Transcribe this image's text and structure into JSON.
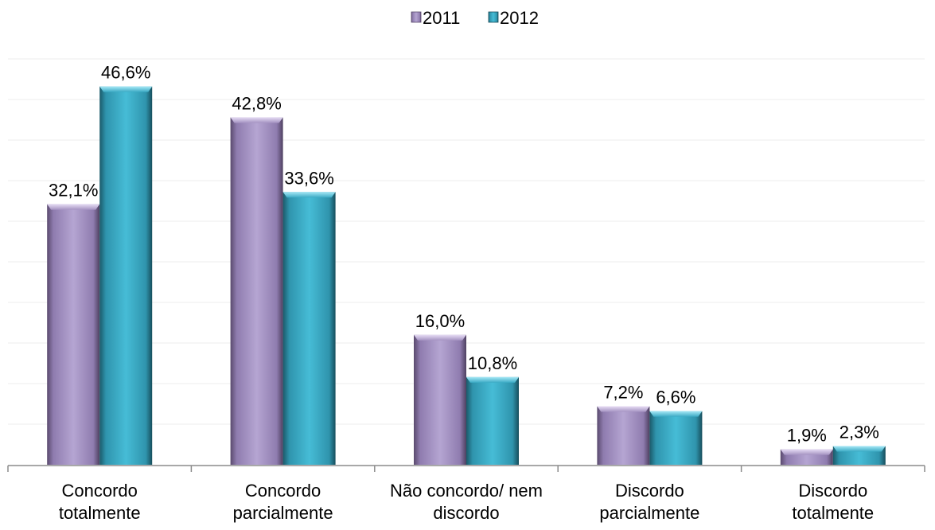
{
  "chart_data": {
    "type": "bar",
    "categories": [
      [
        "Concordo",
        "totalmente"
      ],
      [
        "Concordo",
        "parcialmente"
      ],
      [
        "Não concordo/ nem",
        "discordo"
      ],
      [
        "Discordo",
        "parcialmente"
      ],
      [
        "Discordo",
        "totalmente"
      ]
    ],
    "series": [
      {
        "name": "2011",
        "values": [
          32.1,
          42.8,
          16.0,
          7.2,
          1.9
        ],
        "labels": [
          "32,1%",
          "42,8%",
          "16,0%",
          "7,2%",
          "1,9%"
        ],
        "color": "#a593c2"
      },
      {
        "name": "2012",
        "values": [
          46.6,
          33.6,
          10.8,
          6.6,
          2.3
        ],
        "labels": [
          "46,6%",
          "33,6%",
          "10,8%",
          "6,6%",
          "2,3%"
        ],
        "color": "#3aaac4"
      }
    ],
    "ylim": [
      0,
      50
    ],
    "grid": true,
    "legend": "top-center"
  }
}
